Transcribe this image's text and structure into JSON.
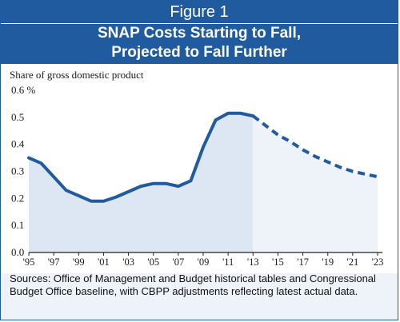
{
  "figure_label": "Figure 1",
  "title_line1": "SNAP Costs Starting to Fall,",
  "title_line2": "Projected to Fall Further",
  "source_text": "Sources: Office of Management and Budget historical tables and Congressional Budget Office baseline, with CBPP adjustments reflecting latest actual data.",
  "colors": {
    "header_bg": "#1f5b9e",
    "line": "#1f5b9e",
    "actual_fill": "#dde6f3",
    "projected_fill": "#eef2f9"
  },
  "chart_data": {
    "type": "line",
    "ylabel": "Share of gross domestic product",
    "ylim": [
      0,
      0.6
    ],
    "y_ticks": [
      "0.0",
      "0.1",
      "0.2",
      "0.3",
      "0.4",
      "0.5",
      "0.6 %"
    ],
    "x_ticks": [
      "'95",
      "'97",
      "'99",
      "'01",
      "'03",
      "'05",
      "'07",
      "'09",
      "'11",
      "'13",
      "'15",
      "'17",
      "'19",
      "'21",
      "'23"
    ],
    "grid": false,
    "series": [
      {
        "style": "solid",
        "x": [
          1995,
          1996,
          1997,
          1998,
          1999,
          2000,
          2001,
          2002,
          2003,
          2004,
          2005,
          2006,
          2007,
          2008,
          2009,
          2010,
          2011,
          2012,
          2013
        ],
        "values": [
          0.35,
          0.33,
          0.28,
          0.23,
          0.21,
          0.19,
          0.19,
          0.205,
          0.225,
          0.245,
          0.255,
          0.255,
          0.245,
          0.265,
          0.39,
          0.49,
          0.515,
          0.515,
          0.505
        ]
      },
      {
        "style": "dashed",
        "x": [
          2013,
          2014,
          2015,
          2016,
          2017,
          2018,
          2019,
          2020,
          2021,
          2022,
          2023
        ],
        "values": [
          0.505,
          0.47,
          0.435,
          0.41,
          0.38,
          0.355,
          0.335,
          0.315,
          0.3,
          0.29,
          0.28
        ]
      }
    ]
  }
}
